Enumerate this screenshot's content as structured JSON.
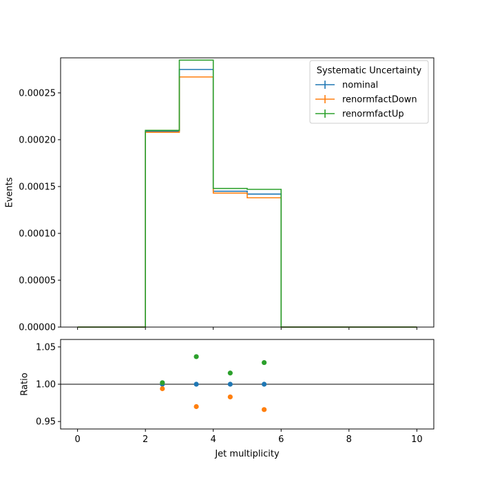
{
  "chart_data": [
    {
      "type": "line",
      "subtype": "step-histogram",
      "title": "",
      "xlabel": "",
      "ylabel": "Events",
      "xlim": [
        -0.5,
        10.5
      ],
      "ylim": [
        0,
        0.0002874
      ],
      "yticks": [
        0,
        5e-05,
        0.0001,
        0.00015,
        0.0002,
        0.00025
      ],
      "ytick_labels": [
        "0.00000",
        "0.00005",
        "0.00010",
        "0.00015",
        "0.00020",
        "0.00025"
      ],
      "bin_edges": [
        0,
        1,
        2,
        3,
        4,
        5,
        6,
        7,
        8,
        9,
        10
      ],
      "series": [
        {
          "name": "nominal",
          "color": "#1f77b4",
          "values": [
            0,
            0,
            0.000209,
            0.000275,
            0.000145,
            0.000142,
            0,
            0,
            0,
            0
          ]
        },
        {
          "name": "renormfactDown",
          "color": "#ff7f0e",
          "values": [
            0,
            0,
            0.000208,
            0.000267,
            0.000143,
            0.000138,
            0,
            0,
            0,
            0
          ]
        },
        {
          "name": "renormfactUp",
          "color": "#2ca02c",
          "values": [
            0,
            0,
            0.00021,
            0.000285,
            0.000148,
            0.000147,
            0,
            0,
            0,
            0
          ]
        }
      ],
      "legend": {
        "title": "Systematic Uncertainty",
        "placement": "top-right",
        "entries": [
          "nominal",
          "renormfactDown",
          "renormfactUp"
        ]
      },
      "grid": false
    },
    {
      "type": "scatter",
      "title": "",
      "xlabel": "Jet multiplicity",
      "ylabel": "Ratio",
      "xlim": [
        -0.5,
        10.5
      ],
      "ylim": [
        0.94,
        1.06
      ],
      "xticks": [
        0,
        2,
        4,
        6,
        8,
        10
      ],
      "xtick_labels": [
        "0",
        "2",
        "4",
        "6",
        "8",
        "10"
      ],
      "yticks": [
        0.95,
        1.0,
        1.05
      ],
      "ytick_labels": [
        "0.95",
        "1.00",
        "1.05"
      ],
      "reference_line": 1.0,
      "series": [
        {
          "name": "nominal",
          "color": "#1f77b4",
          "x": [
            2.5,
            3.5,
            4.5,
            5.5
          ],
          "y": [
            1.0,
            1.0,
            1.0,
            1.0
          ]
        },
        {
          "name": "renormfactDown",
          "color": "#ff7f0e",
          "x": [
            2.5,
            3.5,
            4.5,
            5.5
          ],
          "y": [
            0.994,
            0.97,
            0.983,
            0.966
          ]
        },
        {
          "name": "renormfactUp",
          "color": "#2ca02c",
          "x": [
            2.5,
            3.5,
            4.5,
            5.5
          ],
          "y": [
            1.002,
            1.037,
            1.015,
            1.029
          ]
        }
      ],
      "grid": false
    }
  ]
}
